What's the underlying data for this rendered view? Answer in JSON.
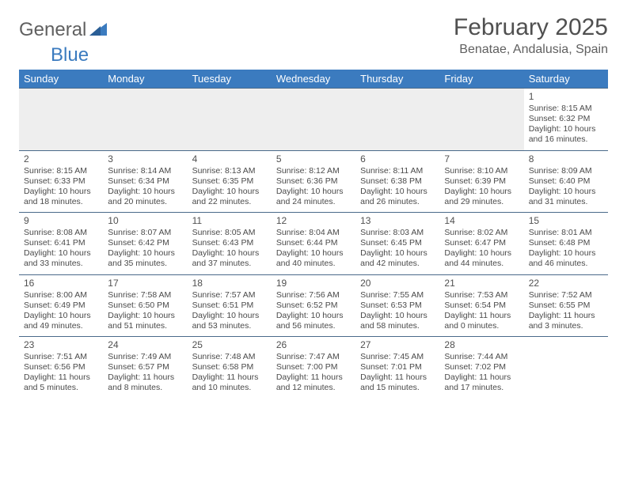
{
  "brand": {
    "part1": "General",
    "part2": "Blue"
  },
  "title": "February 2025",
  "location": "Benatae, Andalusia, Spain",
  "colors": {
    "header_bg": "#3b7bbf",
    "header_text": "#ffffff",
    "row_border": "#4a6a8a",
    "empty_bg": "#eeeeee",
    "text": "#4a4a4a"
  },
  "weekdays": [
    "Sunday",
    "Monday",
    "Tuesday",
    "Wednesday",
    "Thursday",
    "Friday",
    "Saturday"
  ],
  "weeks": [
    [
      null,
      null,
      null,
      null,
      null,
      null,
      {
        "n": "1",
        "sr": "Sunrise: 8:15 AM",
        "ss": "Sunset: 6:32 PM",
        "d1": "Daylight: 10 hours",
        "d2": "and 16 minutes."
      }
    ],
    [
      {
        "n": "2",
        "sr": "Sunrise: 8:15 AM",
        "ss": "Sunset: 6:33 PM",
        "d1": "Daylight: 10 hours",
        "d2": "and 18 minutes."
      },
      {
        "n": "3",
        "sr": "Sunrise: 8:14 AM",
        "ss": "Sunset: 6:34 PM",
        "d1": "Daylight: 10 hours",
        "d2": "and 20 minutes."
      },
      {
        "n": "4",
        "sr": "Sunrise: 8:13 AM",
        "ss": "Sunset: 6:35 PM",
        "d1": "Daylight: 10 hours",
        "d2": "and 22 minutes."
      },
      {
        "n": "5",
        "sr": "Sunrise: 8:12 AM",
        "ss": "Sunset: 6:36 PM",
        "d1": "Daylight: 10 hours",
        "d2": "and 24 minutes."
      },
      {
        "n": "6",
        "sr": "Sunrise: 8:11 AM",
        "ss": "Sunset: 6:38 PM",
        "d1": "Daylight: 10 hours",
        "d2": "and 26 minutes."
      },
      {
        "n": "7",
        "sr": "Sunrise: 8:10 AM",
        "ss": "Sunset: 6:39 PM",
        "d1": "Daylight: 10 hours",
        "d2": "and 29 minutes."
      },
      {
        "n": "8",
        "sr": "Sunrise: 8:09 AM",
        "ss": "Sunset: 6:40 PM",
        "d1": "Daylight: 10 hours",
        "d2": "and 31 minutes."
      }
    ],
    [
      {
        "n": "9",
        "sr": "Sunrise: 8:08 AM",
        "ss": "Sunset: 6:41 PM",
        "d1": "Daylight: 10 hours",
        "d2": "and 33 minutes."
      },
      {
        "n": "10",
        "sr": "Sunrise: 8:07 AM",
        "ss": "Sunset: 6:42 PM",
        "d1": "Daylight: 10 hours",
        "d2": "and 35 minutes."
      },
      {
        "n": "11",
        "sr": "Sunrise: 8:05 AM",
        "ss": "Sunset: 6:43 PM",
        "d1": "Daylight: 10 hours",
        "d2": "and 37 minutes."
      },
      {
        "n": "12",
        "sr": "Sunrise: 8:04 AM",
        "ss": "Sunset: 6:44 PM",
        "d1": "Daylight: 10 hours",
        "d2": "and 40 minutes."
      },
      {
        "n": "13",
        "sr": "Sunrise: 8:03 AM",
        "ss": "Sunset: 6:45 PM",
        "d1": "Daylight: 10 hours",
        "d2": "and 42 minutes."
      },
      {
        "n": "14",
        "sr": "Sunrise: 8:02 AM",
        "ss": "Sunset: 6:47 PM",
        "d1": "Daylight: 10 hours",
        "d2": "and 44 minutes."
      },
      {
        "n": "15",
        "sr": "Sunrise: 8:01 AM",
        "ss": "Sunset: 6:48 PM",
        "d1": "Daylight: 10 hours",
        "d2": "and 46 minutes."
      }
    ],
    [
      {
        "n": "16",
        "sr": "Sunrise: 8:00 AM",
        "ss": "Sunset: 6:49 PM",
        "d1": "Daylight: 10 hours",
        "d2": "and 49 minutes."
      },
      {
        "n": "17",
        "sr": "Sunrise: 7:58 AM",
        "ss": "Sunset: 6:50 PM",
        "d1": "Daylight: 10 hours",
        "d2": "and 51 minutes."
      },
      {
        "n": "18",
        "sr": "Sunrise: 7:57 AM",
        "ss": "Sunset: 6:51 PM",
        "d1": "Daylight: 10 hours",
        "d2": "and 53 minutes."
      },
      {
        "n": "19",
        "sr": "Sunrise: 7:56 AM",
        "ss": "Sunset: 6:52 PM",
        "d1": "Daylight: 10 hours",
        "d2": "and 56 minutes."
      },
      {
        "n": "20",
        "sr": "Sunrise: 7:55 AM",
        "ss": "Sunset: 6:53 PM",
        "d1": "Daylight: 10 hours",
        "d2": "and 58 minutes."
      },
      {
        "n": "21",
        "sr": "Sunrise: 7:53 AM",
        "ss": "Sunset: 6:54 PM",
        "d1": "Daylight: 11 hours",
        "d2": "and 0 minutes."
      },
      {
        "n": "22",
        "sr": "Sunrise: 7:52 AM",
        "ss": "Sunset: 6:55 PM",
        "d1": "Daylight: 11 hours",
        "d2": "and 3 minutes."
      }
    ],
    [
      {
        "n": "23",
        "sr": "Sunrise: 7:51 AM",
        "ss": "Sunset: 6:56 PM",
        "d1": "Daylight: 11 hours",
        "d2": "and 5 minutes."
      },
      {
        "n": "24",
        "sr": "Sunrise: 7:49 AM",
        "ss": "Sunset: 6:57 PM",
        "d1": "Daylight: 11 hours",
        "d2": "and 8 minutes."
      },
      {
        "n": "25",
        "sr": "Sunrise: 7:48 AM",
        "ss": "Sunset: 6:58 PM",
        "d1": "Daylight: 11 hours",
        "d2": "and 10 minutes."
      },
      {
        "n": "26",
        "sr": "Sunrise: 7:47 AM",
        "ss": "Sunset: 7:00 PM",
        "d1": "Daylight: 11 hours",
        "d2": "and 12 minutes."
      },
      {
        "n": "27",
        "sr": "Sunrise: 7:45 AM",
        "ss": "Sunset: 7:01 PM",
        "d1": "Daylight: 11 hours",
        "d2": "and 15 minutes."
      },
      {
        "n": "28",
        "sr": "Sunrise: 7:44 AM",
        "ss": "Sunset: 7:02 PM",
        "d1": "Daylight: 11 hours",
        "d2": "and 17 minutes."
      },
      null
    ]
  ]
}
